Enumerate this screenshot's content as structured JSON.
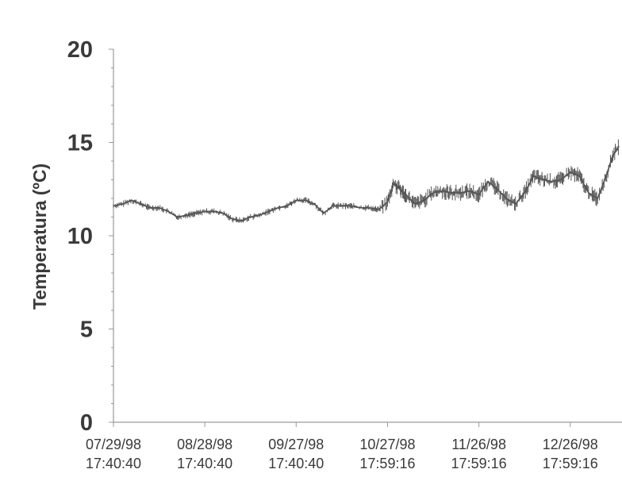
{
  "chart_data": {
    "type": "line",
    "title": "",
    "xlabel": "",
    "ylabel": "Temperatura (ºC)",
    "ylim": [
      0,
      20
    ],
    "xlim_days": [
      0,
      167
    ],
    "grid": false,
    "yticks": [
      "0",
      "5",
      "10",
      "15",
      "20"
    ],
    "xticks": [
      {
        "date": "07/29/98",
        "time": "17:40:40",
        "day": 0
      },
      {
        "date": "08/28/98",
        "time": "17:40:40",
        "day": 30
      },
      {
        "date": "09/27/98",
        "time": "17:40:40",
        "day": 60
      },
      {
        "date": "10/27/98",
        "time": "17:59:16",
        "day": 90
      },
      {
        "date": "11/26/98",
        "time": "17:59:16",
        "day": 120
      },
      {
        "date": "12/26/98",
        "time": "17:59:16",
        "day": 150
      }
    ],
    "series": [
      {
        "x": [
          0,
          3,
          6,
          9,
          12,
          15,
          18,
          21,
          24,
          27,
          30,
          33,
          36,
          39,
          42,
          45,
          48,
          51,
          54,
          57,
          60,
          63,
          66,
          69,
          72,
          75,
          78,
          81,
          84,
          87,
          90,
          92,
          94,
          96,
          99,
          102,
          105,
          108,
          111,
          114,
          117,
          120,
          123,
          126,
          129,
          132,
          135,
          138,
          141,
          144,
          147,
          150,
          153,
          156,
          159,
          162,
          164,
          166
        ],
        "y": [
          11.6,
          11.7,
          11.9,
          11.7,
          11.5,
          11.5,
          11.3,
          11.0,
          11.1,
          11.2,
          11.3,
          11.3,
          11.2,
          10.9,
          10.8,
          11.0,
          11.1,
          11.3,
          11.5,
          11.6,
          11.9,
          11.9,
          11.7,
          11.2,
          11.6,
          11.6,
          11.6,
          11.5,
          11.5,
          11.4,
          11.8,
          12.8,
          12.5,
          12.2,
          11.7,
          11.9,
          12.3,
          12.4,
          12.3,
          12.3,
          12.4,
          12.2,
          12.9,
          12.5,
          12.0,
          11.7,
          12.3,
          13.2,
          13.0,
          12.9,
          13.0,
          13.4,
          13.2,
          12.3,
          12.0,
          13.3,
          14.3,
          14.8
        ]
      }
    ]
  }
}
